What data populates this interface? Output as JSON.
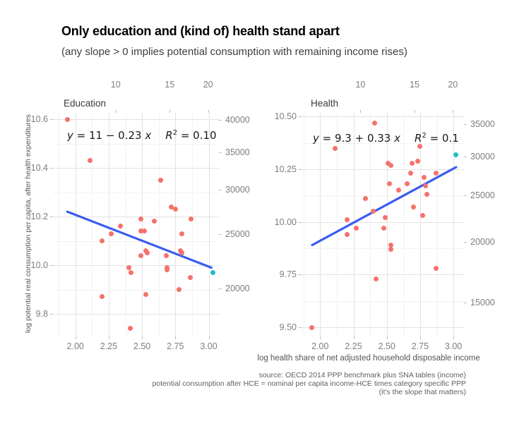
{
  "header": {
    "title": "Only education and (kind of) health stand apart",
    "subtitle": "(any slope > 0 implies potential consumption with remaining income rises)"
  },
  "y_axis_title": "log potential real consumption per capita, after health expenditures",
  "footer": {
    "x_axis_label": "log health share of net adjusted household disposable income",
    "caption_lines": [
      "source: OECD 2014 PPP benchmark plus SNA tables (income)",
      "potential consumption after HCE = nominal per capita income-HCE times category specific PPP",
      "(it's the slope that matters)"
    ]
  },
  "colors": {
    "point": "#f4726c",
    "highlight_point": "#1fbfc6",
    "trend_line": "#3a5bf0",
    "grid_major": "#e3e3e3",
    "grid_minor": "#f2f2f2",
    "tick_text": "#7e7e7e"
  },
  "chart_data": [
    {
      "type": "scatter",
      "facet": "Education",
      "equation": {
        "y_var": "y",
        "body": " = 11 − 0.23 ",
        "x_var": "x",
        "r_var": "R",
        "r_exp": "2",
        "r_rest": " = 0.10"
      },
      "x_ticks": [
        "2.00",
        "2.25",
        "2.50",
        "2.75",
        "3.00"
      ],
      "y_ticks": [
        "9.8",
        "10.0",
        "10.2",
        "10.4",
        "10.6"
      ],
      "top_ticks": [
        "10",
        "15",
        "20"
      ],
      "right_ticks": [
        "20000",
        "25000",
        "30000",
        "35000",
        "40000"
      ],
      "xlim": [
        1.83,
        3.08
      ],
      "ylim": [
        9.71,
        10.63
      ],
      "grid": true,
      "points": [
        [
          1.94,
          10.6
        ],
        [
          2.11,
          10.43
        ],
        [
          2.64,
          10.35
        ],
        [
          2.72,
          10.24
        ],
        [
          2.75,
          10.23
        ],
        [
          2.49,
          10.19
        ],
        [
          2.59,
          10.18
        ],
        [
          2.87,
          10.19
        ],
        [
          2.34,
          10.16
        ],
        [
          2.27,
          10.13
        ],
        [
          2.49,
          10.14
        ],
        [
          2.52,
          10.14
        ],
        [
          2.8,
          10.13
        ],
        [
          2.2,
          10.1
        ],
        [
          2.53,
          10.06
        ],
        [
          2.54,
          10.05
        ],
        [
          2.49,
          10.04
        ],
        [
          2.68,
          10.04
        ],
        [
          2.79,
          10.06
        ],
        [
          2.8,
          10.05
        ],
        [
          2.4,
          9.99
        ],
        [
          2.42,
          9.97
        ],
        [
          2.69,
          9.99
        ],
        [
          2.69,
          9.98
        ],
        [
          2.86,
          9.95
        ],
        [
          2.78,
          9.9
        ],
        [
          2.53,
          9.88
        ],
        [
          2.2,
          9.87
        ],
        [
          2.41,
          9.74
        ]
      ],
      "highlight_point": [
        3.03,
        9.97
      ],
      "trend": {
        "x": [
          1.94,
          3.02
        ],
        "y": [
          10.22,
          9.99
        ]
      }
    },
    {
      "type": "scatter",
      "facet": "Health",
      "equation": {
        "y_var": "y",
        "body": " = 9.3 + 0.33 ",
        "x_var": "x",
        "r_var": "R",
        "r_exp": "2",
        "r_rest": " = 0.1"
      },
      "x_ticks": [
        "2.00",
        "2.25",
        "2.50",
        "2.75",
        "3.00"
      ],
      "y_ticks": [
        "9.50",
        "9.75",
        "10.00",
        "10.25",
        "10.50"
      ],
      "top_ticks": [
        "10",
        "15",
        "20"
      ],
      "right_ticks": [
        "15000",
        "20000",
        "25000",
        "30000",
        "35000"
      ],
      "xlim": [
        1.83,
        3.08
      ],
      "ylim": [
        9.46,
        10.52
      ],
      "grid": true,
      "points": [
        [
          2.41,
          10.47
        ],
        [
          2.11,
          10.35
        ],
        [
          2.75,
          10.36
        ],
        [
          2.51,
          10.28
        ],
        [
          2.53,
          10.27
        ],
        [
          2.73,
          10.29
        ],
        [
          2.69,
          10.28
        ],
        [
          2.68,
          10.23
        ],
        [
          2.87,
          10.23
        ],
        [
          2.78,
          10.21
        ],
        [
          2.79,
          10.17
        ],
        [
          2.65,
          10.18
        ],
        [
          2.52,
          10.18
        ],
        [
          2.59,
          10.15
        ],
        [
          2.8,
          10.13
        ],
        [
          2.34,
          10.11
        ],
        [
          2.7,
          10.07
        ],
        [
          2.4,
          10.05
        ],
        [
          2.77,
          10.03
        ],
        [
          2.2,
          10.01
        ],
        [
          2.49,
          10.02
        ],
        [
          2.48,
          9.97
        ],
        [
          2.27,
          9.97
        ],
        [
          2.2,
          9.94
        ],
        [
          2.53,
          9.89
        ],
        [
          2.53,
          9.87
        ],
        [
          2.87,
          9.78
        ],
        [
          2.42,
          9.73
        ],
        [
          1.94,
          9.5
        ]
      ],
      "highlight_point": [
        3.02,
        10.32
      ],
      "trend": {
        "x": [
          1.94,
          3.02
        ],
        "y": [
          9.89,
          10.26
        ]
      }
    }
  ]
}
